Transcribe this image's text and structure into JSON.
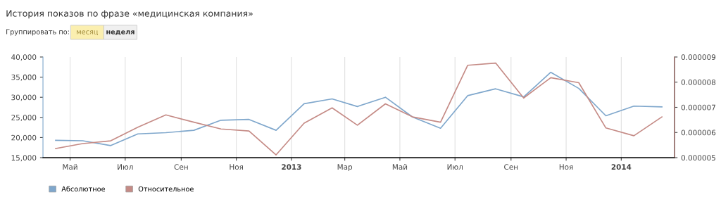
{
  "chart_data": {
    "type": "line",
    "title": "История показов по фразе «медицинская компания»",
    "subtitle": "Группировать по:",
    "annotations": [
      "месяц",
      "неделя"
    ],
    "x": [
      "2012-04-15",
      "2012-05-15",
      "2012-06-15",
      "2012-07-15",
      "2012-08-15",
      "2012-09-15",
      "2012-10-15",
      "2012-11-15",
      "2012-12-15",
      "2013-01-15",
      "2013-02-15",
      "2013-03-15",
      "2013-04-15",
      "2013-05-15",
      "2013-06-15",
      "2013-07-15",
      "2013-08-15",
      "2013-09-15",
      "2013-10-15",
      "2013-11-15",
      "2013-12-15",
      "2014-01-15",
      "2014-02-15"
    ],
    "series": [
      {
        "name": "Абсолютное",
        "color": "#7fa7cc",
        "values": [
          19300,
          19200,
          18000,
          20900,
          21200,
          21800,
          24300,
          24500,
          21800,
          28400,
          29600,
          27700,
          30000,
          25100,
          22300,
          30400,
          32100,
          30100,
          36200,
          32200,
          25400,
          27800,
          27600
        ]
      },
      {
        "name": "Относительное",
        "color": "#c58b86",
        "axis": "y2",
        "values": [
          5.36e-06,
          5.56e-06,
          5.67e-06,
          6.21e-06,
          6.7e-06,
          6.41e-06,
          6.14e-06,
          6.06e-06,
          5.11e-06,
          6.37e-06,
          6.98e-06,
          6.29e-06,
          7.14e-06,
          6.62e-06,
          6.41e-06,
          8.67e-06,
          8.76e-06,
          7.37e-06,
          8.18e-06,
          7.98e-06,
          6.18e-06,
          5.87e-06,
          6.62e-06
        ]
      }
    ],
    "xlim": [
      "2012-04-01",
      "2014-03-01"
    ],
    "xticks": [
      {
        "value": "2012-05-01",
        "label": "Май"
      },
      {
        "value": "2012-07-01",
        "label": "Июл"
      },
      {
        "value": "2012-09-01",
        "label": "Сен"
      },
      {
        "value": "2012-11-01",
        "label": "Ноя"
      },
      {
        "value": "2013-01-01",
        "label": "2013"
      },
      {
        "value": "2013-03-01",
        "label": "Мар"
      },
      {
        "value": "2013-05-01",
        "label": "Май"
      },
      {
        "value": "2013-07-01",
        "label": "Июл"
      },
      {
        "value": "2013-09-01",
        "label": "Сен"
      },
      {
        "value": "2013-11-01",
        "label": "Ноя"
      },
      {
        "value": "2014-01-01",
        "label": "2014"
      }
    ],
    "ylim": [
      15000,
      40000
    ],
    "yticks": [
      {
        "value": 15000,
        "label": "15,000"
      },
      {
        "value": 20000,
        "label": "20,000"
      },
      {
        "value": 25000,
        "label": "25,000"
      },
      {
        "value": 30000,
        "label": "30,000"
      },
      {
        "value": 35000,
        "label": "35,000"
      },
      {
        "value": 40000,
        "label": "40,000"
      }
    ],
    "y2lim": [
      5e-06,
      9e-06
    ],
    "y2ticks": [
      {
        "value": 5e-06,
        "label": "0.000005"
      },
      {
        "value": 6e-06,
        "label": "0.000006"
      },
      {
        "value": 7e-06,
        "label": "0.000007"
      },
      {
        "value": 8e-06,
        "label": "0.000008"
      },
      {
        "value": 9e-06,
        "label": "0.000009"
      }
    ],
    "grid": "x",
    "legend": "bottom left",
    "marker": "none",
    "line_style": "solid"
  }
}
